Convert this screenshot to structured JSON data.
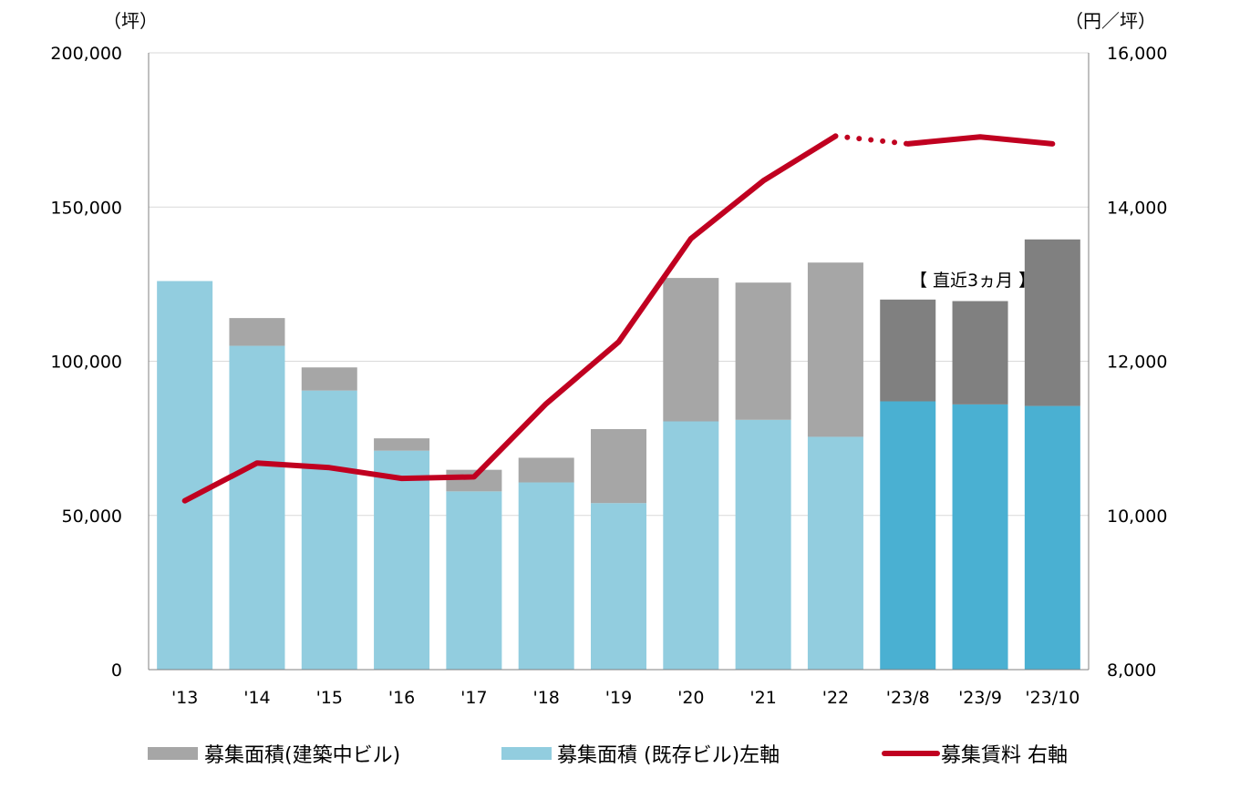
{
  "chart_data": {
    "type": "bar",
    "categories": [
      "'13",
      "'14",
      "'15",
      "'16",
      "'17",
      "'18",
      "'19",
      "'20",
      "'21",
      "'22",
      "'23/8",
      "'23/9",
      "'23/10"
    ],
    "series": [
      {
        "name": "募集面積（既存ビル）左軸",
        "kind": "bar",
        "axis": "left",
        "color": "#92CDDF",
        "highlight_color": "#4AB0D2",
        "values": [
          126000,
          105000,
          90500,
          71000,
          57800,
          60700,
          54000,
          80500,
          81000,
          75500,
          87000,
          86000,
          85500
        ]
      },
      {
        "name": "募集面積（建築中ビル）",
        "kind": "bar",
        "axis": "left",
        "color": "#A6A6A6",
        "highlight_color": "#808080",
        "values": [
          0,
          9000,
          7500,
          4000,
          7000,
          8000,
          24000,
          46500,
          44500,
          56500,
          33000,
          33500,
          54000
        ]
      },
      {
        "name": "募集賃料 右軸",
        "kind": "line",
        "axis": "right",
        "color": "#C00020",
        "values": [
          10190,
          10680,
          10620,
          10480,
          10500,
          11450,
          12250,
          13590,
          14340,
          14920,
          14820,
          14910,
          14820
        ]
      }
    ],
    "highlight_from_index": 10,
    "dotted_segment": [
      9,
      10
    ],
    "left_axis": {
      "unit": "（坪）",
      "ylim": [
        0,
        200000
      ],
      "ticks": [
        "0",
        "50,000",
        "100,000",
        "150,000",
        "200,000"
      ]
    },
    "right_axis": {
      "unit": "（円／坪）",
      "ylim": [
        8000,
        16000
      ],
      "ticks": [
        "8,000",
        "10,000",
        "12,000",
        "14,000",
        "16,000"
      ]
    },
    "annotation": "【 直近3ヵ月 】",
    "legend": [
      {
        "label": "募集面積(建築中ビル)",
        "color": "#A6A6A6",
        "kind": "bar"
      },
      {
        "label": "募集面積 (既存ビル)左軸",
        "color": "#92CDDF",
        "kind": "bar"
      },
      {
        "label": "募集賃料 右軸",
        "color": "#C00020",
        "kind": "line"
      }
    ],
    "legend_position": "bottom",
    "grid": true
  }
}
